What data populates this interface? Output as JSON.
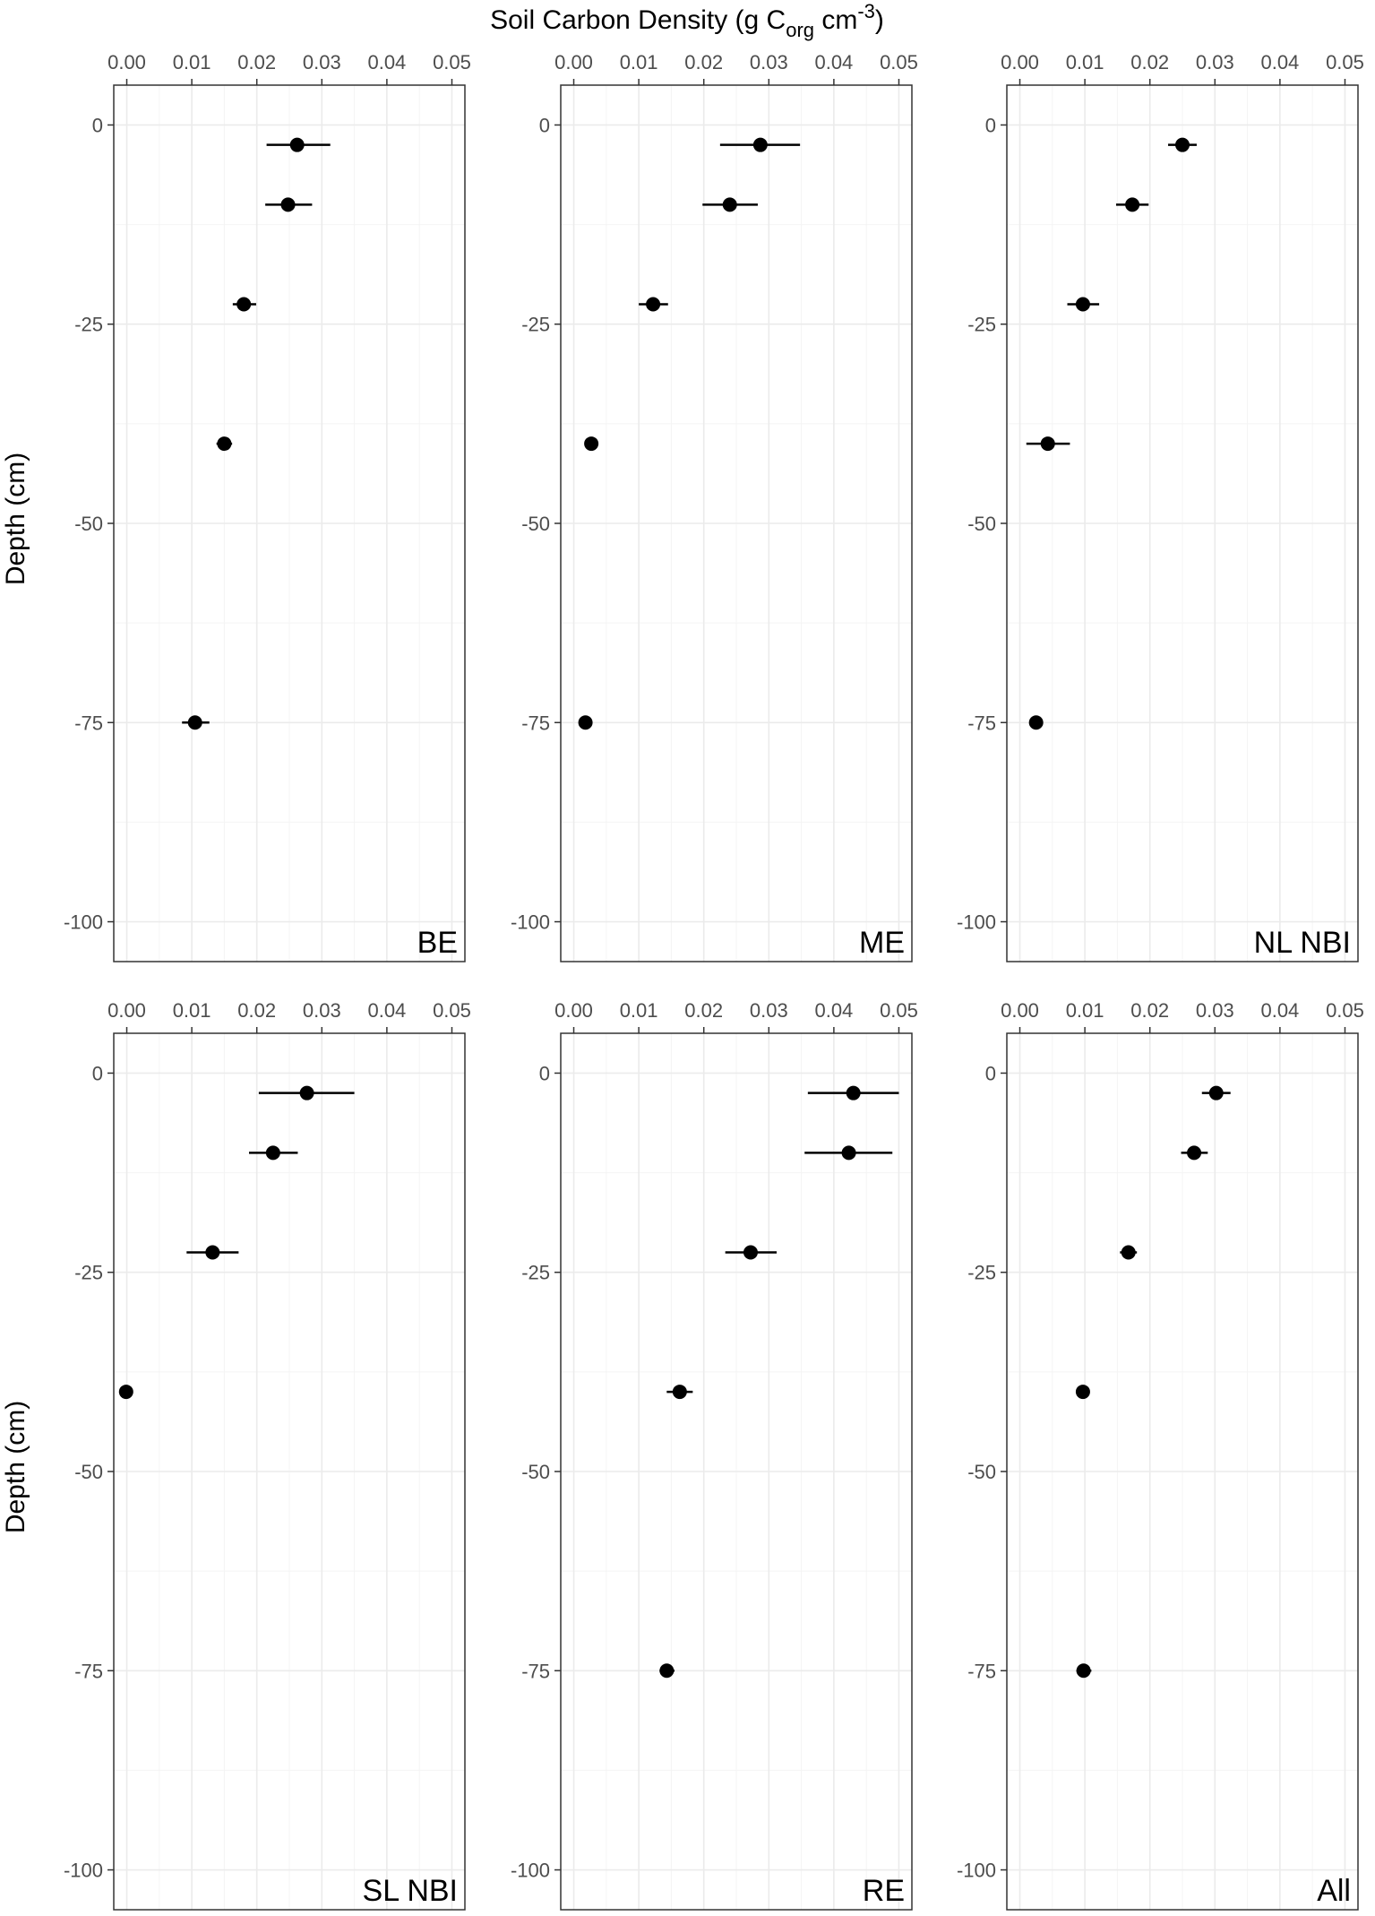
{
  "chart_data": {
    "type": "scatter",
    "title": "",
    "xlabel": {
      "main": "Soil Carbon Density (g C",
      "sub": "org",
      "unit": " cm",
      "sup": "-3",
      "close": ")"
    },
    "ylabel": "Depth (cm)",
    "xlim": [
      -0.002,
      0.052
    ],
    "ylim": [
      -105,
      5
    ],
    "x_ticks": [
      0.0,
      0.01,
      0.02,
      0.03,
      0.04,
      0.05
    ],
    "x_tick_labels": [
      "0.00",
      "0.01",
      "0.02",
      "0.03",
      "0.04",
      "0.05"
    ],
    "y_ticks": [
      0,
      -25,
      -50,
      -75,
      -100
    ],
    "y_tick_labels": [
      "0",
      "-25",
      "-50",
      "-75",
      "-100"
    ],
    "x_axis_position": "top",
    "grid": true,
    "error_bars": "horizontal",
    "panels": [
      {
        "label": "BE",
        "points": [
          {
            "depth": -2.5,
            "x": 0.0262,
            "xmin": 0.0215,
            "xmax": 0.0313
          },
          {
            "depth": -10,
            "x": 0.0248,
            "xmin": 0.0213,
            "xmax": 0.0285
          },
          {
            "depth": -22.5,
            "x": 0.018,
            "xmin": 0.0163,
            "xmax": 0.0199
          },
          {
            "depth": -40,
            "x": 0.015,
            "xmin": 0.0138,
            "xmax": 0.0162
          },
          {
            "depth": -75,
            "x": 0.0105,
            "xmin": 0.0085,
            "xmax": 0.0127
          }
        ]
      },
      {
        "label": "ME",
        "points": [
          {
            "depth": -2.5,
            "x": 0.0287,
            "xmin": 0.0225,
            "xmax": 0.0348
          },
          {
            "depth": -10,
            "x": 0.024,
            "xmin": 0.0198,
            "xmax": 0.0283
          },
          {
            "depth": -22.5,
            "x": 0.0122,
            "xmin": 0.01,
            "xmax": 0.0145
          },
          {
            "depth": -40,
            "x": 0.0027,
            "xmin": 0.0022,
            "xmax": 0.0033
          },
          {
            "depth": -75,
            "x": 0.0018,
            "xmin": 0.0013,
            "xmax": 0.0023
          }
        ]
      },
      {
        "label": "NL NBI",
        "points": [
          {
            "depth": -2.5,
            "x": 0.025,
            "xmin": 0.0228,
            "xmax": 0.0272
          },
          {
            "depth": -10,
            "x": 0.0173,
            "xmin": 0.0148,
            "xmax": 0.0198
          },
          {
            "depth": -22.5,
            "x": 0.0097,
            "xmin": 0.0073,
            "xmax": 0.0122
          },
          {
            "depth": -40,
            "x": 0.0043,
            "xmin": 0.001,
            "xmax": 0.0077
          },
          {
            "depth": -75,
            "x": 0.0025,
            "xmin": 0.002,
            "xmax": 0.003
          }
        ]
      },
      {
        "label": "SL NBI",
        "points": [
          {
            "depth": -2.5,
            "x": 0.0277,
            "xmin": 0.0203,
            "xmax": 0.035
          },
          {
            "depth": -10,
            "x": 0.0225,
            "xmin": 0.0188,
            "xmax": 0.0263
          },
          {
            "depth": -22.5,
            "x": 0.0132,
            "xmin": 0.0092,
            "xmax": 0.0172
          },
          {
            "depth": -40,
            "x": -0.0001,
            "xmin": -0.0006,
            "xmax": 0.0004
          }
        ]
      },
      {
        "label": "RE",
        "points": [
          {
            "depth": -2.5,
            "x": 0.043,
            "xmin": 0.036,
            "xmax": 0.05
          },
          {
            "depth": -10,
            "x": 0.0423,
            "xmin": 0.0355,
            "xmax": 0.049
          },
          {
            "depth": -22.5,
            "x": 0.0272,
            "xmin": 0.0233,
            "xmax": 0.0312
          },
          {
            "depth": -40,
            "x": 0.0163,
            "xmin": 0.0143,
            "xmax": 0.0183
          },
          {
            "depth": -75,
            "x": 0.0143,
            "xmin": 0.0132,
            "xmax": 0.0155
          }
        ]
      },
      {
        "label": "All",
        "points": [
          {
            "depth": -2.5,
            "x": 0.0302,
            "xmin": 0.028,
            "xmax": 0.0324
          },
          {
            "depth": -10,
            "x": 0.0268,
            "xmin": 0.0248,
            "xmax": 0.0289
          },
          {
            "depth": -22.5,
            "x": 0.0167,
            "xmin": 0.0154,
            "xmax": 0.018
          },
          {
            "depth": -40,
            "x": 0.0097,
            "xmin": 0.0087,
            "xmax": 0.0107
          },
          {
            "depth": -75,
            "x": 0.0098,
            "xmin": 0.0087,
            "xmax": 0.011
          }
        ]
      }
    ]
  }
}
